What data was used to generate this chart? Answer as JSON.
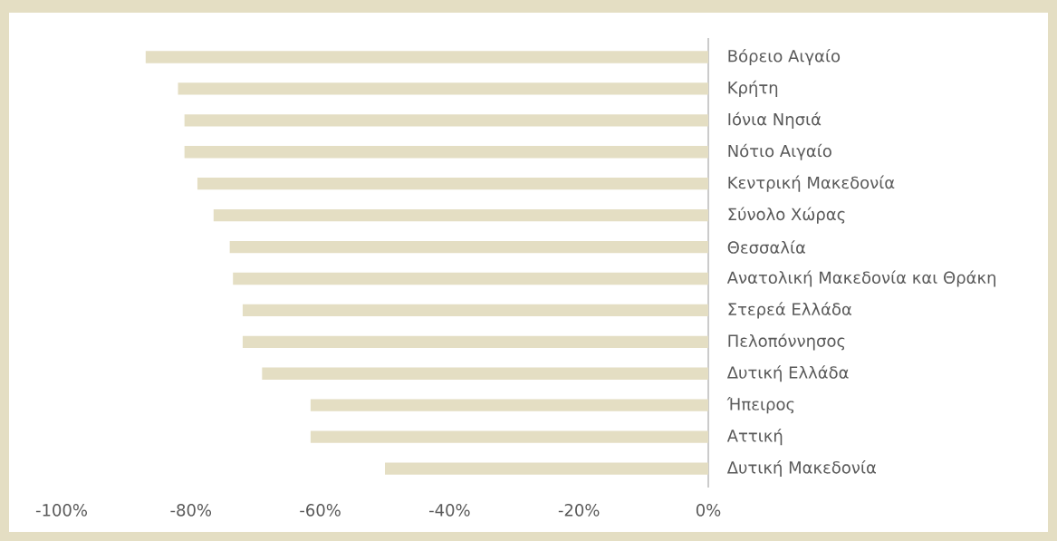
{
  "chart_data": {
    "type": "bar",
    "orientation": "horizontal",
    "categories": [
      "Βόρειο Αιγαίο",
      "Κρήτη",
      "Ιόνια Νησιά",
      "Νότιο Αιγαίο",
      "Κεντρική Μακεδονία",
      "Σύνολο Χώρας",
      "Θεσσαλία",
      "Ανατολική Μακεδονία και Θράκη",
      "Στερεά Ελλάδα",
      "Πελοπόννησος",
      "Δυτική Ελλάδα",
      "Ήπειρος",
      "Αττική",
      "Δυτική Μακεδονία"
    ],
    "values": [
      -87,
      -82,
      -81,
      -81,
      -79,
      -76.5,
      -74,
      -73.5,
      -72,
      -72,
      -69,
      -61.5,
      -61.5,
      -50
    ],
    "color": "#e4dec3",
    "xlim": [
      -100,
      0
    ],
    "xticks": [
      {
        "value": -100,
        "label": "-100%"
      },
      {
        "value": -80,
        "label": "-80%"
      },
      {
        "value": -60,
        "label": "-60%"
      },
      {
        "value": -40,
        "label": "-40%"
      },
      {
        "value": -20,
        "label": "-20%"
      },
      {
        "value": 0,
        "label": "0%"
      }
    ],
    "grid": false
  }
}
